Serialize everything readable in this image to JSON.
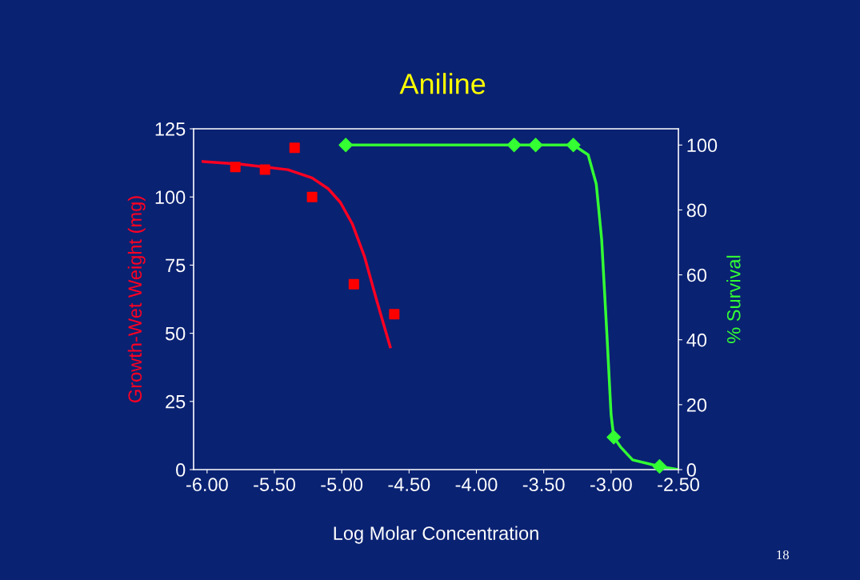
{
  "chart_data": {
    "type": "scatter",
    "title": "Aniline",
    "xlabel": "Log Molar Concentration",
    "ylabel": "Growth-Wet Weight (mg)",
    "y2label": "% Survival",
    "xlim": [
      -6.1,
      -2.5
    ],
    "xticks": [
      {
        "value": -6,
        "label": "-6.00"
      },
      {
        "value": -5.5,
        "label": "-5.50"
      },
      {
        "value": -5,
        "label": "-5.00"
      },
      {
        "value": -4.5,
        "label": "-4.50"
      },
      {
        "value": -4,
        "label": "-4.00"
      },
      {
        "value": -3.5,
        "label": "-3.50"
      },
      {
        "value": -3,
        "label": "-3.00"
      },
      {
        "value": -2.5,
        "label": "-2.50"
      }
    ],
    "ylim": [
      0,
      125
    ],
    "yticks": [
      0,
      25,
      50,
      75,
      100,
      125
    ],
    "y2lim": [
      0,
      105
    ],
    "y2ticks": [
      0,
      20,
      40,
      60,
      80,
      100
    ],
    "grid": false,
    "series": [
      {
        "color": "#ff0000",
        "marker": "square",
        "x": [
          -5.79,
          -5.57,
          -5.35,
          -5.22,
          -4.91,
          -4.61
        ],
        "values": [
          111,
          110,
          118,
          100,
          68,
          57
        ]
      },
      {
        "type": "line",
        "color": "#ff0022",
        "marker": "none",
        "line_style": "solid",
        "x": [
          -6.03,
          -5.75,
          -5.4,
          -5.22,
          -5.1,
          -5.01,
          -4.92,
          -4.83,
          -4.74,
          -4.64
        ],
        "values": [
          113,
          112,
          110,
          107,
          103,
          98,
          90,
          78,
          62,
          45
        ]
      },
      {
        "color": "#33ff33",
        "marker": "diamond",
        "axis": "y2",
        "x": [
          -4.97,
          -3.72,
          -3.56,
          -3.28,
          -2.98,
          -2.64
        ],
        "values": [
          100,
          100,
          100,
          100,
          10,
          1
        ]
      },
      {
        "type": "line",
        "color": "#33ff33",
        "marker": "none",
        "line_style": "solid",
        "axis": "y2",
        "x": [
          -4.97,
          -3.28,
          -3.17,
          -3.11,
          -3.07,
          -3.03,
          -3.0,
          -2.98,
          -2.93,
          -2.84,
          -2.64,
          -2.5
        ],
        "values": [
          100,
          100,
          97,
          88,
          71,
          41,
          17,
          10,
          7,
          3,
          1,
          0
        ]
      }
    ],
    "annotations": [
      "18"
    ]
  }
}
